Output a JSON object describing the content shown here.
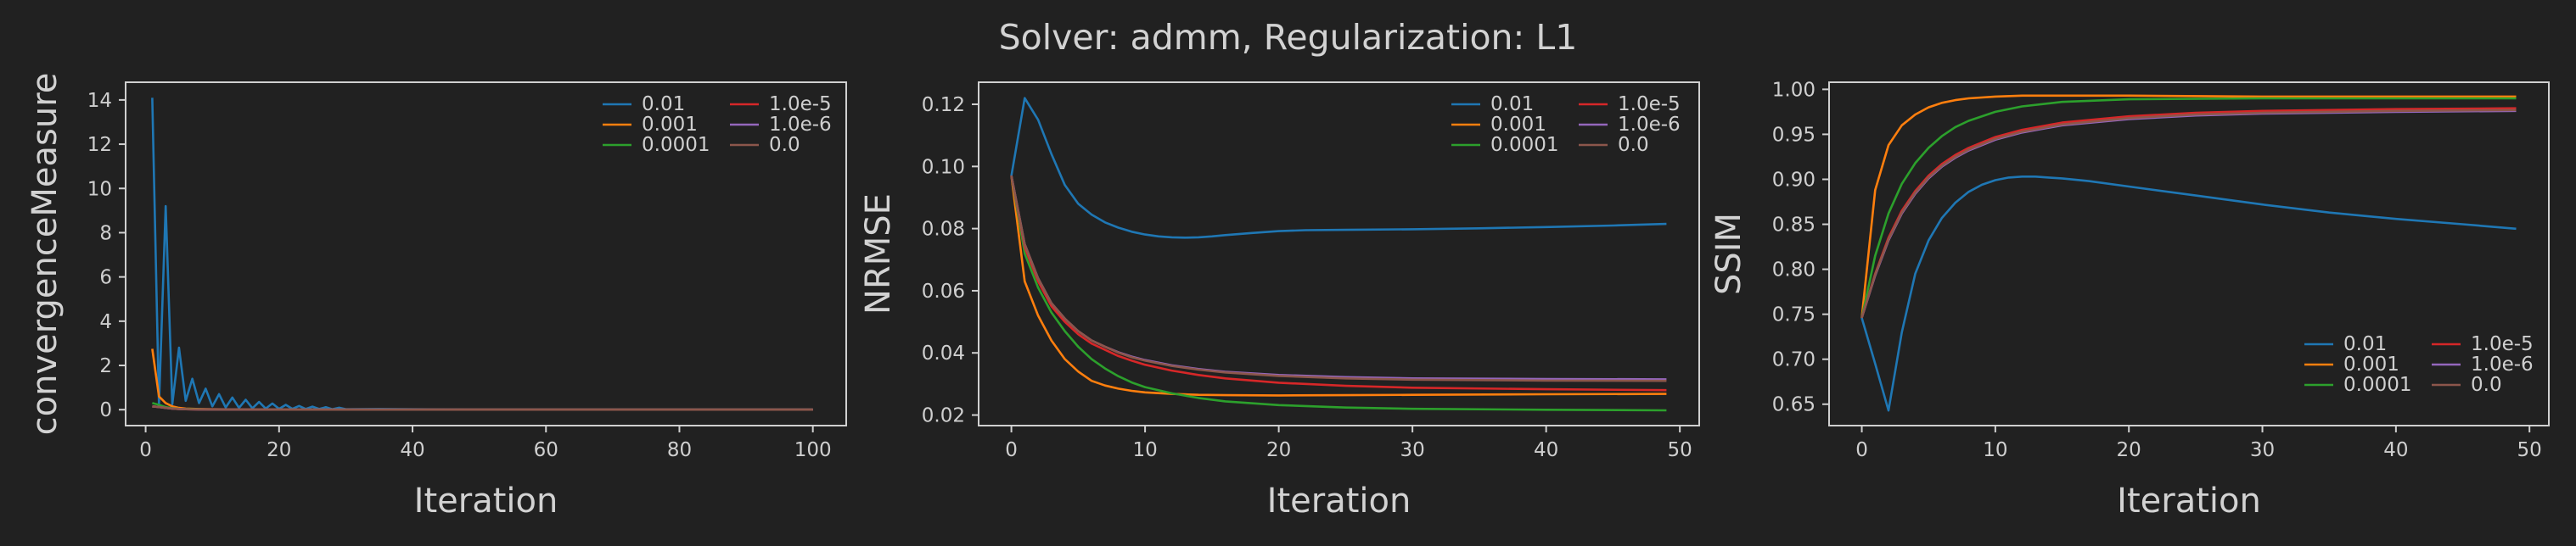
{
  "title": "Solver: admm, Regularization: L1",
  "colors": {
    "background": "#212121",
    "frame": "#d0d0d0",
    "text": "#cfcfcf"
  },
  "series_colors": [
    "#1f77b4",
    "#ff7f0e",
    "#2ca02c",
    "#d62728",
    "#9467bd",
    "#8c564b"
  ],
  "chart_data": [
    {
      "type": "line",
      "xlabel": "Iteration",
      "ylabel": "convergenceMeasure",
      "xlim": [
        -3,
        105
      ],
      "ylim": [
        -0.72,
        14.8
      ],
      "xticks": [
        0,
        20,
        40,
        60,
        80,
        100
      ],
      "yticks": [
        0,
        2,
        4,
        6,
        8,
        10,
        12,
        14
      ],
      "legend_loc": "upper right",
      "grid": false,
      "series": [
        {
          "name": "0.01",
          "x": [
            1,
            2,
            3,
            4,
            5,
            6,
            7,
            8,
            9,
            10,
            11,
            12,
            13,
            14,
            15,
            16,
            17,
            18,
            19,
            20,
            21,
            22,
            23,
            24,
            25,
            26,
            27,
            28,
            29,
            30,
            35,
            40,
            50,
            60,
            80,
            100
          ],
          "y": [
            14.1,
            0.2,
            9.2,
            0.25,
            2.8,
            0.4,
            1.4,
            0.3,
            0.95,
            0.15,
            0.7,
            0.1,
            0.55,
            0.08,
            0.45,
            0.06,
            0.35,
            0.05,
            0.28,
            0.04,
            0.22,
            0.04,
            0.17,
            0.03,
            0.14,
            0.03,
            0.11,
            0.02,
            0.09,
            0.02,
            0.03,
            0.02,
            0.01,
            0.01,
            0.01,
            0.01
          ]
        },
        {
          "name": "0.001",
          "x": [
            1,
            2,
            3,
            4,
            5,
            6,
            8,
            10,
            15,
            20,
            30,
            50,
            100
          ],
          "y": [
            2.75,
            0.6,
            0.3,
            0.15,
            0.08,
            0.05,
            0.03,
            0.02,
            0.01,
            0.01,
            0.0,
            0.0,
            0.0
          ]
        },
        {
          "name": "0.0001",
          "x": [
            1,
            2,
            3,
            4,
            5,
            6,
            8,
            10,
            20,
            50,
            100
          ],
          "y": [
            0.3,
            0.22,
            0.12,
            0.07,
            0.04,
            0.03,
            0.02,
            0.01,
            0.0,
            0.0,
            0.0
          ]
        },
        {
          "name": "1.0e-5",
          "x": [
            1,
            2,
            3,
            4,
            5,
            6,
            8,
            10,
            20,
            50,
            100
          ],
          "y": [
            0.15,
            0.12,
            0.08,
            0.05,
            0.03,
            0.02,
            0.01,
            0.01,
            0.0,
            0.0,
            0.0
          ]
        },
        {
          "name": "1.0e-6",
          "x": [
            1,
            2,
            3,
            4,
            5,
            6,
            8,
            10,
            20,
            50,
            100
          ],
          "y": [
            0.15,
            0.12,
            0.08,
            0.05,
            0.03,
            0.02,
            0.01,
            0.01,
            0.0,
            0.0,
            0.0
          ]
        },
        {
          "name": "0.0",
          "x": [
            1,
            2,
            3,
            4,
            5,
            6,
            8,
            10,
            20,
            50,
            100
          ],
          "y": [
            0.15,
            0.12,
            0.08,
            0.05,
            0.03,
            0.02,
            0.01,
            0.01,
            0.0,
            0.0,
            0.0
          ]
        }
      ]
    },
    {
      "type": "line",
      "xlabel": "Iteration",
      "ylabel": "NRMSE",
      "xlim": [
        -2.45,
        51.45
      ],
      "ylim": [
        0.0166,
        0.1271
      ],
      "xticks": [
        0,
        10,
        20,
        30,
        40,
        50
      ],
      "yticks": [
        0.02,
        0.04,
        0.06,
        0.08,
        0.1,
        0.12
      ],
      "ytick_labels": [
        "0.02",
        "0.04",
        "0.06",
        "0.08",
        "0.10",
        "0.12"
      ],
      "legend_loc": "upper right",
      "grid": false,
      "series": [
        {
          "name": "0.01",
          "x": [
            0,
            1,
            2,
            3,
            4,
            5,
            6,
            7,
            8,
            9,
            10,
            11,
            12,
            13,
            14,
            15,
            16,
            18,
            20,
            22,
            25,
            30,
            35,
            40,
            45,
            49
          ],
          "y": [
            0.097,
            0.122,
            0.115,
            0.104,
            0.094,
            0.088,
            0.0845,
            0.082,
            0.0803,
            0.079,
            0.0781,
            0.0775,
            0.0772,
            0.0771,
            0.0772,
            0.0775,
            0.0779,
            0.0786,
            0.0792,
            0.0795,
            0.0796,
            0.0798,
            0.0801,
            0.0805,
            0.081,
            0.0815
          ]
        },
        {
          "name": "0.001",
          "x": [
            0,
            1,
            2,
            3,
            4,
            5,
            6,
            7,
            8,
            9,
            10,
            12,
            14,
            16,
            20,
            25,
            30,
            40,
            49
          ],
          "y": [
            0.097,
            0.063,
            0.052,
            0.044,
            0.038,
            0.034,
            0.031,
            0.0295,
            0.0285,
            0.0278,
            0.0273,
            0.0268,
            0.0265,
            0.0264,
            0.0263,
            0.0264,
            0.0265,
            0.0267,
            0.0268
          ]
        },
        {
          "name": "0.0001",
          "x": [
            0,
            1,
            2,
            3,
            4,
            5,
            6,
            7,
            8,
            9,
            10,
            12,
            14,
            16,
            20,
            25,
            30,
            40,
            49
          ],
          "y": [
            0.097,
            0.072,
            0.061,
            0.053,
            0.047,
            0.042,
            0.038,
            0.035,
            0.0325,
            0.0305,
            0.029,
            0.027,
            0.0255,
            0.0244,
            0.0232,
            0.0224,
            0.022,
            0.0217,
            0.0215
          ]
        },
        {
          "name": "1.0e-5",
          "x": [
            0,
            1,
            2,
            3,
            4,
            5,
            6,
            7,
            8,
            9,
            10,
            12,
            14,
            16,
            20,
            25,
            30,
            40,
            49
          ],
          "y": [
            0.097,
            0.074,
            0.063,
            0.055,
            0.05,
            0.046,
            0.043,
            0.041,
            0.039,
            0.0375,
            0.0362,
            0.0343,
            0.0329,
            0.0318,
            0.0304,
            0.0294,
            0.0288,
            0.0283,
            0.028
          ]
        },
        {
          "name": "1.0e-6",
          "x": [
            0,
            1,
            2,
            3,
            4,
            5,
            6,
            7,
            8,
            9,
            10,
            12,
            14,
            16,
            20,
            25,
            30,
            40,
            49
          ],
          "y": [
            0.097,
            0.075,
            0.064,
            0.056,
            0.051,
            0.047,
            0.044,
            0.042,
            0.0402,
            0.0388,
            0.0377,
            0.036,
            0.0348,
            0.0339,
            0.0329,
            0.0322,
            0.0318,
            0.0316,
            0.0315
          ]
        },
        {
          "name": "0.0",
          "x": [
            0,
            1,
            2,
            3,
            4,
            5,
            6,
            7,
            8,
            9,
            10,
            12,
            14,
            16,
            20,
            25,
            30,
            40,
            49
          ],
          "y": [
            0.097,
            0.075,
            0.064,
            0.056,
            0.051,
            0.047,
            0.044,
            0.042,
            0.0401,
            0.0386,
            0.0375,
            0.0358,
            0.0346,
            0.0337,
            0.0326,
            0.0318,
            0.0314,
            0.0311,
            0.031
          ]
        }
      ]
    },
    {
      "type": "line",
      "xlabel": "Iteration",
      "ylabel": "SSIM",
      "xlim": [
        -2.45,
        51.45
      ],
      "ylim": [
        0.6262,
        1.0079
      ],
      "xticks": [
        0,
        10,
        20,
        30,
        40,
        50
      ],
      "yticks": [
        0.65,
        0.7,
        0.75,
        0.8,
        0.85,
        0.9,
        0.95,
        1.0
      ],
      "ytick_labels": [
        "0.65",
        "0.70",
        "0.75",
        "0.80",
        "0.85",
        "0.90",
        "0.95",
        "1.00"
      ],
      "legend_loc": "lower right",
      "grid": false,
      "series": [
        {
          "name": "0.01",
          "x": [
            0,
            1,
            2,
            3,
            4,
            5,
            6,
            7,
            8,
            9,
            10,
            11,
            12,
            13,
            14,
            15,
            17,
            20,
            25,
            30,
            35,
            40,
            45,
            49
          ],
          "y": [
            0.746,
            0.695,
            0.643,
            0.73,
            0.795,
            0.832,
            0.857,
            0.874,
            0.886,
            0.894,
            0.899,
            0.902,
            0.903,
            0.903,
            0.902,
            0.901,
            0.898,
            0.892,
            0.882,
            0.872,
            0.863,
            0.856,
            0.85,
            0.845
          ]
        },
        {
          "name": "0.001",
          "x": [
            0,
            1,
            2,
            3,
            4,
            5,
            6,
            7,
            8,
            10,
            12,
            15,
            20,
            30,
            40,
            49
          ],
          "y": [
            0.746,
            0.888,
            0.938,
            0.96,
            0.972,
            0.98,
            0.985,
            0.988,
            0.99,
            0.992,
            0.993,
            0.993,
            0.993,
            0.992,
            0.992,
            0.992
          ]
        },
        {
          "name": "0.0001",
          "x": [
            0,
            1,
            2,
            3,
            4,
            5,
            6,
            7,
            8,
            10,
            12,
            15,
            20,
            30,
            40,
            49
          ],
          "y": [
            0.746,
            0.815,
            0.862,
            0.895,
            0.918,
            0.935,
            0.948,
            0.958,
            0.965,
            0.975,
            0.981,
            0.986,
            0.989,
            0.99,
            0.99,
            0.99
          ]
        },
        {
          "name": "1.0e-5",
          "x": [
            0,
            1,
            2,
            3,
            4,
            5,
            6,
            7,
            8,
            10,
            12,
            15,
            20,
            25,
            30,
            40,
            49
          ],
          "y": [
            0.746,
            0.795,
            0.835,
            0.865,
            0.887,
            0.904,
            0.917,
            0.927,
            0.935,
            0.947,
            0.955,
            0.963,
            0.97,
            0.974,
            0.976,
            0.978,
            0.979
          ]
        },
        {
          "name": "1.0e-6",
          "x": [
            0,
            1,
            2,
            3,
            4,
            5,
            6,
            7,
            8,
            10,
            12,
            15,
            20,
            25,
            30,
            40,
            49
          ],
          "y": [
            0.746,
            0.793,
            0.832,
            0.862,
            0.884,
            0.901,
            0.914,
            0.924,
            0.932,
            0.944,
            0.952,
            0.96,
            0.967,
            0.971,
            0.973,
            0.975,
            0.976
          ]
        },
        {
          "name": "0.0",
          "x": [
            0,
            1,
            2,
            3,
            4,
            5,
            6,
            7,
            8,
            10,
            12,
            15,
            20,
            25,
            30,
            40,
            49
          ],
          "y": [
            0.746,
            0.794,
            0.833,
            0.863,
            0.885,
            0.902,
            0.915,
            0.925,
            0.933,
            0.945,
            0.953,
            0.961,
            0.968,
            0.972,
            0.974,
            0.976,
            0.977
          ]
        }
      ]
    }
  ]
}
